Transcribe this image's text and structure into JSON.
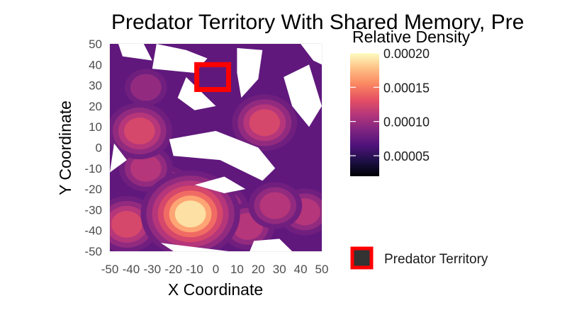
{
  "chart_data": {
    "type": "heatmap",
    "title": "Predator Territory With Shared Memory, Pre",
    "xlabel": "X Coordinate",
    "ylabel": "Y Coordinate",
    "xlim": [
      -50,
      50
    ],
    "ylim": [
      -50,
      50
    ],
    "x_ticks": [
      "-50",
      "-40",
      "-30",
      "-20",
      "-10",
      "0",
      "10",
      "20",
      "30",
      "40",
      "50"
    ],
    "y_ticks": [
      "50",
      "40",
      "30",
      "20",
      "10",
      "0",
      "-10",
      "-20",
      "-30",
      "-40",
      "-50"
    ],
    "grid": true,
    "colorbar": {
      "title": "Relative Density",
      "ticks": [
        "0.00020",
        "0.00015",
        "0.00010",
        "0.00005"
      ],
      "tick_values": [
        0.0002,
        0.00015,
        0.0001,
        5e-05
      ],
      "range": [
        2e-05,
        0.0002
      ],
      "colormap": "magma"
    },
    "density_peaks": [
      {
        "x": -12,
        "y": -32,
        "density": 0.0002
      },
      {
        "x": -42,
        "y": -37,
        "density": 0.00014
      },
      {
        "x": -36,
        "y": 8,
        "density": 0.00013
      },
      {
        "x": 23,
        "y": 12,
        "density": 0.00013
      },
      {
        "x": 28,
        "y": -28,
        "density": 0.00012
      },
      {
        "x": 42,
        "y": -31,
        "density": 0.00011
      },
      {
        "x": 5,
        "y": -28,
        "density": 0.0001
      },
      {
        "x": -33,
        "y": -10,
        "density": 0.00012
      },
      {
        "x": -33,
        "y": 29,
        "density": 0.0001
      },
      {
        "x": 15,
        "y": -38,
        "density": 0.00011
      },
      {
        "x": -22,
        "y": -18,
        "density": 0.0001
      }
    ],
    "territory": {
      "x_min": -9,
      "x_max": 6,
      "y_min": 28,
      "y_max": 40,
      "color": "#ff0000"
    },
    "legend": {
      "label": "Predator Territory",
      "fill": "#333333",
      "border": "#ff0000",
      "position": "right-bottom"
    }
  }
}
